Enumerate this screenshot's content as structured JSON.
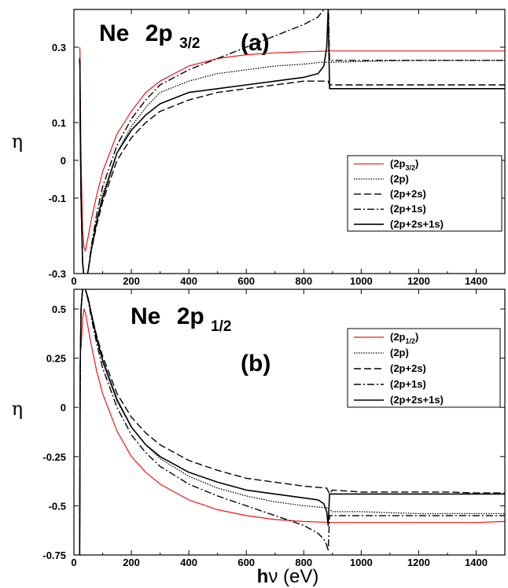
{
  "chart_data": [
    {
      "type": "line",
      "panel_label": "(a)",
      "title_main": "Ne",
      "title_orbital": "2p",
      "title_sub": "3/2",
      "ylabel": "η",
      "xlim": [
        0,
        1500
      ],
      "ylim": [
        -0.3,
        0.4
      ],
      "xticks": [
        {
          "v": 0,
          "label": "0"
        },
        {
          "v": 200,
          "label": "200"
        },
        {
          "v": 400,
          "label": "400"
        },
        {
          "v": 600,
          "label": "600"
        },
        {
          "v": 800,
          "label": "800"
        },
        {
          "v": 1000,
          "label": "1000"
        },
        {
          "v": 1200,
          "label": "1200"
        },
        {
          "v": 1400,
          "label": "1400"
        }
      ],
      "yticks": [
        {
          "v": -0.3,
          "label": "-0.3"
        },
        {
          "v": -0.1,
          "label": "-0.1"
        },
        {
          "v": 0,
          "label": "0"
        },
        {
          "v": 0.1,
          "label": "0.1"
        },
        {
          "v": 0.3,
          "label": "0.3"
        }
      ],
      "legend": {
        "placement": "right",
        "entries": [
          {
            "label": "(2p",
            "sub": "3/2",
            "close": ")"
          },
          {
            "label": "(2p)",
            "sub": "",
            "close": ""
          },
          {
            "label": "(2p+2s)",
            "sub": "",
            "close": ""
          },
          {
            "label": "(2p+1s)",
            "sub": "",
            "close": ""
          },
          {
            "label": "(2p+2s+1s)",
            "sub": "",
            "close": ""
          }
        ]
      },
      "series": [
        {
          "style": "red",
          "x": [
            20,
            21,
            22,
            25,
            30,
            35,
            40,
            50,
            60,
            80,
            100,
            150,
            200,
            250,
            300,
            400,
            500,
            600,
            700,
            800,
            900,
            1000,
            1100,
            1200,
            1300,
            1400,
            1500
          ],
          "y": [
            0.3,
            0.29,
            0.2,
            0,
            -0.18,
            -0.23,
            -0.24,
            -0.2,
            -0.16,
            -0.09,
            -0.03,
            0.07,
            0.13,
            0.18,
            0.21,
            0.25,
            0.27,
            0.28,
            0.285,
            0.288,
            0.29,
            0.29,
            0.29,
            0.29,
            0.29,
            0.29,
            0.29
          ]
        },
        {
          "style": "dotted",
          "x": [
            20,
            21,
            22,
            25,
            30,
            35,
            40,
            45,
            50,
            60,
            80,
            100,
            150,
            200,
            250,
            300,
            400,
            500,
            600,
            700,
            800,
            860,
            880,
            890,
            900,
            1000,
            1100,
            1200,
            1300,
            1400,
            1500
          ],
          "y": [
            0.27,
            0.25,
            0.1,
            -0.1,
            -0.27,
            -0.31,
            -0.33,
            -0.31,
            -0.29,
            -0.24,
            -0.16,
            -0.09,
            0.02,
            0.09,
            0.14,
            0.18,
            0.21,
            0.23,
            0.24,
            0.25,
            0.255,
            0.26,
            0.26,
            0.26,
            0.26,
            0.262,
            0.264,
            0.265,
            0.265,
            0.265,
            0.265
          ]
        },
        {
          "style": "dashed",
          "x": [
            20,
            21,
            22,
            25,
            30,
            35,
            40,
            45,
            50,
            60,
            80,
            100,
            150,
            200,
            250,
            300,
            400,
            500,
            600,
            700,
            800,
            870,
            885,
            890,
            900,
            1000,
            1100,
            1200,
            1300,
            1400,
            1500
          ],
          "y": [
            0.27,
            0.25,
            0.1,
            -0.1,
            -0.27,
            -0.31,
            -0.33,
            -0.31,
            -0.29,
            -0.24,
            -0.17,
            -0.11,
            0,
            0.06,
            0.1,
            0.13,
            0.16,
            0.18,
            0.19,
            0.2,
            0.21,
            0.21,
            0.21,
            0.2,
            0.2,
            0.2,
            0.2,
            0.2,
            0.2,
            0.2,
            0.2
          ]
        },
        {
          "style": "dashdot",
          "x": [
            20,
            21,
            22,
            25,
            30,
            35,
            40,
            45,
            50,
            60,
            80,
            100,
            150,
            200,
            250,
            300,
            400,
            500,
            600,
            700,
            800,
            850,
            870,
            880,
            885,
            890,
            900,
            1000,
            1100,
            1200,
            1300,
            1400,
            1500
          ],
          "y": [
            0.27,
            0.25,
            0.1,
            -0.1,
            -0.27,
            -0.31,
            -0.33,
            -0.31,
            -0.29,
            -0.23,
            -0.14,
            -0.07,
            0.04,
            0.11,
            0.16,
            0.2,
            0.24,
            0.27,
            0.3,
            0.33,
            0.36,
            0.38,
            0.4,
            0.42,
            0.45,
            0.265,
            0.265,
            0.265,
            0.265,
            0.265,
            0.265,
            0.265,
            0.265
          ]
        },
        {
          "style": "solid",
          "x": [
            20,
            21,
            22,
            25,
            30,
            35,
            40,
            45,
            50,
            60,
            80,
            100,
            150,
            200,
            250,
            300,
            400,
            500,
            600,
            700,
            800,
            850,
            870,
            880,
            885,
            890,
            900,
            1000,
            1100,
            1200,
            1300,
            1400,
            1500
          ],
          "y": [
            0.27,
            0.25,
            0.1,
            -0.1,
            -0.27,
            -0.31,
            -0.33,
            -0.31,
            -0.29,
            -0.24,
            -0.16,
            -0.1,
            0.02,
            0.08,
            0.12,
            0.15,
            0.18,
            0.19,
            0.2,
            0.21,
            0.22,
            0.23,
            0.25,
            0.3,
            0.4,
            0.19,
            0.19,
            0.19,
            0.19,
            0.19,
            0.19,
            0.19,
            0.19
          ]
        }
      ]
    },
    {
      "type": "line",
      "panel_label": "(b)",
      "title_main": "Ne",
      "title_orbital": "2p",
      "title_sub": "1/2",
      "ylabel": "η",
      "xlabel_main": "h",
      "xlabel_rest": "ν (eV)",
      "xlim": [
        0,
        1500
      ],
      "ylim": [
        -0.75,
        0.6
      ],
      "xticks": [
        {
          "v": 0,
          "label": "0"
        },
        {
          "v": 200,
          "label": "200"
        },
        {
          "v": 400,
          "label": "400"
        },
        {
          "v": 600,
          "label": "600"
        },
        {
          "v": 800,
          "label": "800"
        },
        {
          "v": 1000,
          "label": "1000"
        },
        {
          "v": 1200,
          "label": "1200"
        },
        {
          "v": 1400,
          "label": "1400"
        }
      ],
      "yticks": [
        {
          "v": -0.75,
          "label": "-0.75"
        },
        {
          "v": -0.5,
          "label": "-0.5"
        },
        {
          "v": -0.25,
          "label": "-0.25"
        },
        {
          "v": 0,
          "label": "0"
        },
        {
          "v": 0.25,
          "label": "0.25"
        },
        {
          "v": 0.5,
          "label": "0.5"
        }
      ],
      "legend": {
        "placement": "right",
        "entries": [
          {
            "label": "(2p",
            "sub": "1/2",
            "close": ")"
          },
          {
            "label": "(2p)",
            "sub": "",
            "close": ""
          },
          {
            "label": "(2p+2s)",
            "sub": "",
            "close": ""
          },
          {
            "label": "(2p+1s)",
            "sub": "",
            "close": ""
          },
          {
            "label": "(2p+2s+1s)",
            "sub": "",
            "close": ""
          }
        ]
      },
      "series": [
        {
          "style": "red",
          "x": [
            25,
            30,
            35,
            40,
            50,
            60,
            80,
            100,
            150,
            200,
            250,
            300,
            400,
            500,
            600,
            700,
            800,
            900,
            1000,
            1100,
            1200,
            1300,
            1400,
            1500
          ],
          "y": [
            0.3,
            0.45,
            0.5,
            0.48,
            0.4,
            0.32,
            0.18,
            0.07,
            -0.12,
            -0.25,
            -0.33,
            -0.39,
            -0.47,
            -0.52,
            -0.55,
            -0.57,
            -0.58,
            -0.585,
            -0.585,
            -0.585,
            -0.585,
            -0.585,
            -0.585,
            -0.58
          ]
        },
        {
          "style": "dotted",
          "x": [
            20,
            22,
            25,
            30,
            35,
            40,
            50,
            60,
            80,
            100,
            150,
            200,
            250,
            300,
            400,
            500,
            600,
            700,
            800,
            880,
            890,
            900,
            1000,
            1100,
            1200,
            1300,
            1400,
            1500
          ],
          "y": [
            -0.75,
            0.2,
            0.5,
            0.6,
            0.62,
            0.6,
            0.55,
            0.47,
            0.34,
            0.23,
            0.03,
            -0.1,
            -0.19,
            -0.26,
            -0.35,
            -0.41,
            -0.45,
            -0.48,
            -0.5,
            -0.51,
            -0.52,
            -0.53,
            -0.53,
            -0.535,
            -0.54,
            -0.54,
            -0.54,
            -0.54
          ]
        },
        {
          "style": "dashed",
          "x": [
            20,
            22,
            25,
            30,
            35,
            40,
            50,
            60,
            80,
            100,
            150,
            200,
            250,
            300,
            400,
            500,
            600,
            700,
            800,
            880,
            890,
            900,
            1000,
            1100,
            1200,
            1300,
            1400,
            1500
          ],
          "y": [
            -0.75,
            0.2,
            0.5,
            0.6,
            0.62,
            0.6,
            0.55,
            0.48,
            0.36,
            0.26,
            0.07,
            -0.05,
            -0.13,
            -0.19,
            -0.27,
            -0.32,
            -0.36,
            -0.38,
            -0.4,
            -0.41,
            -0.44,
            -0.42,
            -0.43,
            -0.43,
            -0.43,
            -0.43,
            -0.435,
            -0.435
          ]
        },
        {
          "style": "dashdot",
          "x": [
            20,
            22,
            25,
            30,
            35,
            40,
            50,
            60,
            80,
            100,
            150,
            200,
            250,
            300,
            400,
            500,
            600,
            700,
            800,
            850,
            870,
            880,
            885,
            890,
            900,
            1000,
            1100,
            1200,
            1300,
            1400,
            1500
          ],
          "y": [
            -0.75,
            0.2,
            0.5,
            0.6,
            0.62,
            0.6,
            0.54,
            0.46,
            0.32,
            0.2,
            0,
            -0.14,
            -0.23,
            -0.3,
            -0.39,
            -0.45,
            -0.5,
            -0.55,
            -0.6,
            -0.64,
            -0.67,
            -0.7,
            -0.73,
            -0.55,
            -0.55,
            -0.55,
            -0.55,
            -0.55,
            -0.55,
            -0.55,
            -0.55
          ]
        },
        {
          "style": "solid",
          "x": [
            20,
            22,
            25,
            30,
            35,
            40,
            50,
            60,
            80,
            100,
            150,
            200,
            250,
            300,
            400,
            500,
            600,
            700,
            800,
            850,
            870,
            880,
            885,
            890,
            900,
            1000,
            1100,
            1200,
            1300,
            1400,
            1500
          ],
          "y": [
            -0.75,
            0.2,
            0.5,
            0.6,
            0.62,
            0.6,
            0.55,
            0.48,
            0.35,
            0.24,
            0.04,
            -0.1,
            -0.19,
            -0.25,
            -0.33,
            -0.38,
            -0.42,
            -0.44,
            -0.46,
            -0.47,
            -0.49,
            -0.53,
            -0.6,
            -0.44,
            -0.44,
            -0.44,
            -0.44,
            -0.44,
            -0.44,
            -0.44,
            -0.44
          ]
        }
      ]
    }
  ]
}
